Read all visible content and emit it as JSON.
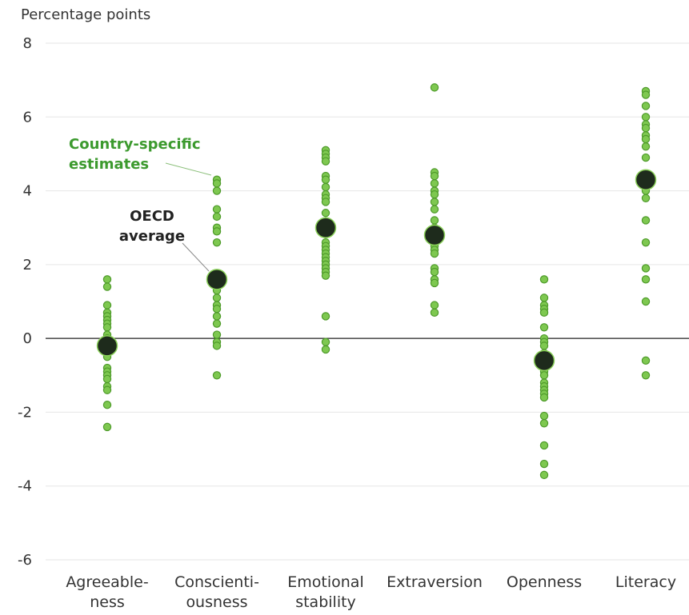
{
  "chart_data": {
    "type": "scatter",
    "ylabel": "Percentage points",
    "ylim": [
      -6,
      8
    ],
    "yticks": [
      8,
      6,
      4,
      2,
      0,
      -2,
      -4,
      -6
    ],
    "grid": true,
    "categories": [
      {
        "label_lines": [
          "Agreeable-",
          "ness"
        ]
      },
      {
        "label_lines": [
          "Conscienti-",
          "ousness"
        ]
      },
      {
        "label_lines": [
          "Emotional",
          "stability"
        ]
      },
      {
        "label_lines": [
          "Extraversion"
        ]
      },
      {
        "label_lines": [
          "Openness"
        ]
      },
      {
        "label_lines": [
          "Literacy"
        ]
      }
    ],
    "series": [
      {
        "values": [
          [
            1.6,
            1.4,
            0.9,
            0.7,
            0.6,
            0.5,
            0.4,
            0.3,
            0.1,
            0.0,
            -0.1,
            -0.3,
            -0.5,
            -0.8,
            -0.9,
            -1.0,
            -1.1,
            -1.3,
            -1.4,
            -1.8,
            -2.4
          ],
          [
            4.3,
            4.2,
            4.0,
            3.5,
            3.3,
            3.0,
            2.9,
            2.6,
            1.6,
            1.4,
            1.3,
            1.1,
            0.9,
            0.8,
            0.6,
            0.4,
            0.1,
            -0.1,
            -0.2,
            -1.0
          ],
          [
            5.1,
            5.0,
            4.9,
            4.8,
            4.4,
            4.3,
            4.1,
            3.9,
            3.8,
            3.7,
            3.4,
            3.1,
            2.6,
            2.5,
            2.4,
            2.3,
            2.2,
            2.1,
            2.0,
            1.9,
            1.8,
            1.7,
            0.6,
            -0.1,
            -0.3
          ],
          [
            6.8,
            4.5,
            4.4,
            4.2,
            4.0,
            3.9,
            3.7,
            3.5,
            3.2,
            3.0,
            2.7,
            2.5,
            2.4,
            2.3,
            1.9,
            1.8,
            1.6,
            1.5,
            0.9,
            0.7
          ],
          [
            1.6,
            1.1,
            0.9,
            0.8,
            0.7,
            0.3,
            0.0,
            -0.1,
            -0.2,
            -0.4,
            -0.6,
            -0.8,
            -0.9,
            -1.0,
            -1.2,
            -1.3,
            -1.4,
            -1.5,
            -1.6,
            -2.1,
            -2.3,
            -2.9,
            -3.4,
            -3.7
          ],
          [
            6.7,
            6.6,
            6.3,
            6.0,
            5.8,
            5.7,
            5.5,
            5.4,
            5.2,
            4.9,
            4.4,
            4.3,
            4.2,
            4.0,
            3.8,
            3.2,
            2.6,
            1.9,
            1.6,
            1.0,
            -0.6,
            -1.0
          ]
        ]
      },
      {
        "values": [
          -0.2,
          1.6,
          3.0,
          2.8,
          -0.6,
          4.3
        ]
      }
    ],
    "annotations": [
      {
        "text_lines": [
          "Country-specific",
          "estimates"
        ],
        "color": "#3c9a2e",
        "points_to_category": 1
      },
      {
        "text_lines": [
          "OECD",
          "average"
        ],
        "color": "#222222",
        "points_to_category": 1
      }
    ],
    "colors": {
      "country_fill": "#7ec850",
      "country_stroke": "#4e9a2a",
      "average_fill": "#1e2b1c",
      "average_stroke": "#8bd15a",
      "grid": "#e6e6e6",
      "zero_line": "#222222",
      "text": "#333333"
    }
  }
}
